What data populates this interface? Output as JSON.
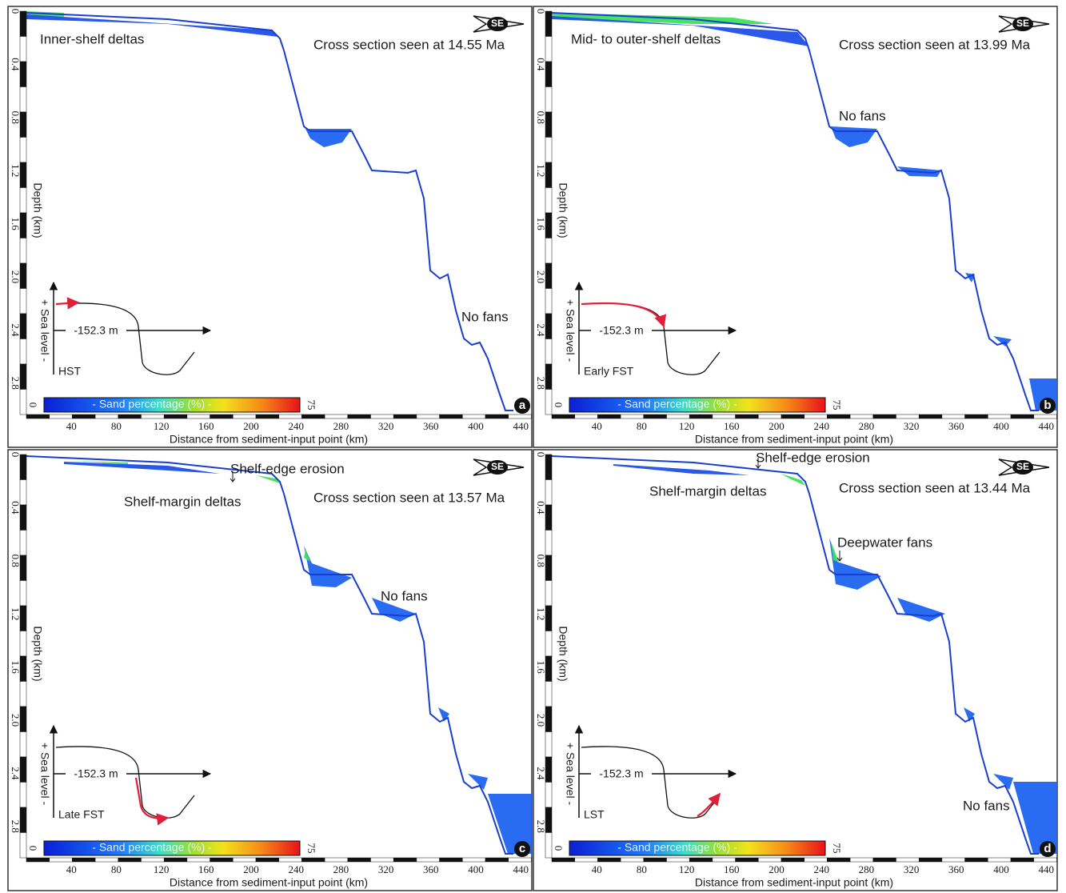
{
  "depth_axis": {
    "title": "Depth (km)",
    "ticks": [
      "0",
      "0.4",
      "0.8",
      "1.2",
      "1.6",
      "2.0",
      "2.4",
      "2.8"
    ]
  },
  "distance_axis": {
    "title": "Distance from sediment-input point (km)",
    "ticks": [
      40,
      80,
      120,
      160,
      200,
      240,
      280,
      320,
      360,
      400,
      440
    ]
  },
  "colorbar": {
    "label": "- Sand percentage (%) -",
    "min": 0,
    "max": 75
  },
  "compass": "SE",
  "sea_level": {
    "axis_label": "+ Sea level -",
    "datum": "-152.3 m"
  },
  "panels": [
    {
      "letter": "a",
      "cross_section": "Cross section seen at 14.55 Ma",
      "stage": "HST",
      "annotations": [
        "Inner-shelf deltas",
        "No fans"
      ]
    },
    {
      "letter": "b",
      "cross_section": "Cross section seen at 13.99 Ma",
      "stage": "Early FST",
      "annotations": [
        "Mid- to outer-shelf deltas",
        "No fans"
      ]
    },
    {
      "letter": "c",
      "cross_section": "Cross section seen at 13.57 Ma",
      "stage": "Late FST",
      "annotations": [
        "Shelf-edge erosion",
        "Shelf-margin deltas",
        "No fans"
      ]
    },
    {
      "letter": "d",
      "cross_section": "Cross section seen at 13.44 Ma",
      "stage": "LST",
      "annotations": [
        "Shelf-edge erosion",
        "Shelf-margin deltas",
        "Deepwater fans",
        "No fans"
      ]
    }
  ]
}
